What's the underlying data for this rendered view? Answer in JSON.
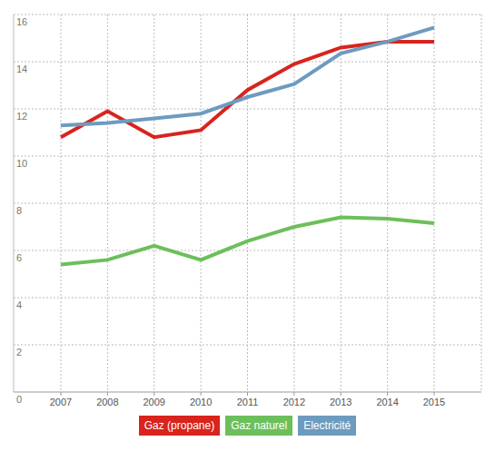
{
  "chart_data": {
    "type": "line",
    "categories": [
      "2007",
      "2008",
      "2009",
      "2010",
      "2011",
      "2012",
      "2013",
      "2014",
      "2015"
    ],
    "series": [
      {
        "name": "Gaz (propane)",
        "color": "#d9231d",
        "values": [
          10.8,
          11.9,
          10.8,
          11.1,
          12.8,
          13.9,
          14.6,
          14.85,
          14.85
        ]
      },
      {
        "name": "Gaz naturel",
        "color": "#6cbf5b",
        "values": [
          5.4,
          5.6,
          6.2,
          5.6,
          6.4,
          7.0,
          7.4,
          7.35,
          7.15
        ]
      },
      {
        "name": "Electricité",
        "color": "#6d9bbf",
        "values": [
          11.3,
          11.4,
          11.6,
          11.8,
          12.5,
          13.05,
          14.35,
          14.85,
          15.45
        ]
      }
    ],
    "ylim": [
      0,
      16
    ],
    "yticks": [
      0,
      2,
      4,
      6,
      8,
      10,
      12,
      14,
      16
    ],
    "grid": true,
    "legend": "bottom"
  }
}
